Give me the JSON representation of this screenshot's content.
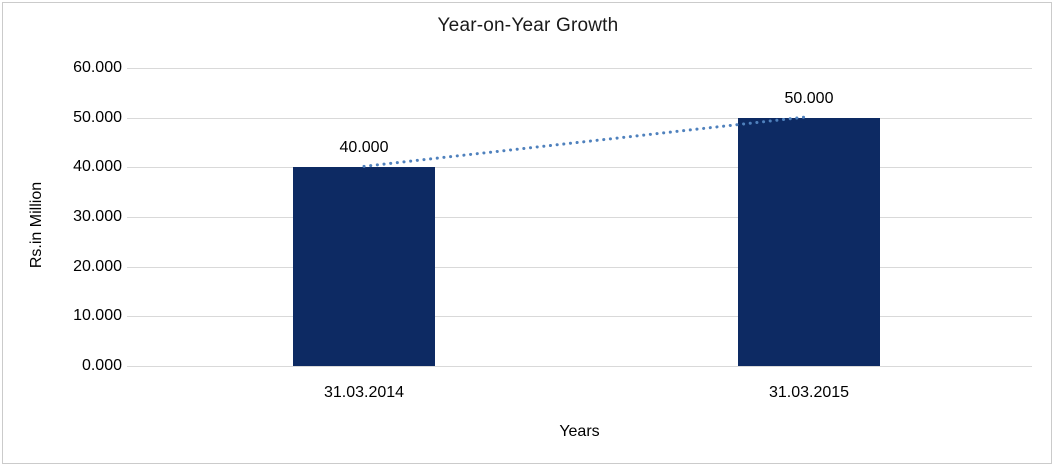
{
  "page": {
    "background": "#ffffff",
    "frame_border_color": "#cbcbcb"
  },
  "chart_data": {
    "type": "bar",
    "title": "Year-on-Year Growth",
    "xlabel": "Years",
    "ylabel": "Rs.in Million",
    "categories": [
      "31.03.2014",
      "31.03.2015"
    ],
    "values": [
      40,
      50
    ],
    "data_labels": [
      "40.000",
      "50.000"
    ],
    "ylim": [
      0,
      60
    ],
    "y_ticks": [
      {
        "value": 0,
        "label": "0.000"
      },
      {
        "value": 10,
        "label": "10.000"
      },
      {
        "value": 20,
        "label": "20.000"
      },
      {
        "value": 30,
        "label": "30.000"
      },
      {
        "value": 40,
        "label": "40.000"
      },
      {
        "value": 50,
        "label": "50.000"
      },
      {
        "value": 60,
        "label": "60.000"
      }
    ],
    "grid": true,
    "legend": "none",
    "bar_color": "#0d2a63",
    "gridline_color": "#d9d9d9",
    "trendline": {
      "type": "linear",
      "style": "dotted",
      "color": "#4f81bd"
    },
    "text_color": "#000000"
  }
}
